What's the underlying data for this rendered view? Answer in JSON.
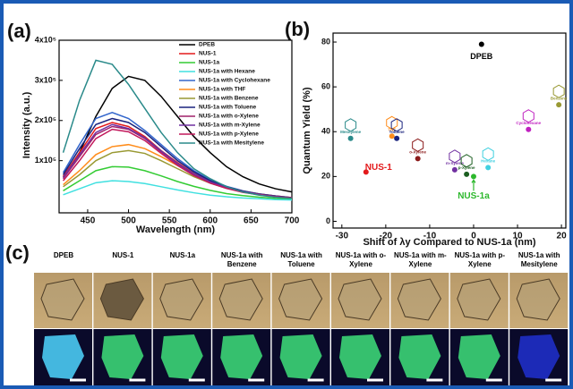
{
  "chart_data": [
    {
      "type": "line",
      "panel": "(a)",
      "xlabel": "Wavelength (nm)",
      "ylabel": "Intensity (a.u.)",
      "x": [
        420,
        440,
        460,
        480,
        500,
        520,
        540,
        560,
        580,
        600,
        620,
        640,
        660,
        680,
        700
      ],
      "xlim": [
        415,
        700
      ],
      "xticks": [
        450,
        500,
        550,
        600,
        650,
        700
      ],
      "ylim": [
        -30000,
        400000
      ],
      "yticks": [
        {
          "value": 100000,
          "label": "1x10⁵"
        },
        {
          "value": 200000,
          "label": "2x10⁵"
        },
        {
          "value": 300000,
          "label": "3x10⁵"
        },
        {
          "value": 400000,
          "label": "4x10⁵"
        }
      ],
      "series": [
        {
          "name": "DPEB",
          "color": "#000000",
          "values": [
            60000,
            120000,
            210000,
            280000,
            310000,
            300000,
            260000,
            210000,
            160000,
            120000,
            85000,
            60000,
            42000,
            30000,
            22000
          ]
        },
        {
          "name": "NUS-1",
          "color": "#e31a1c",
          "values": [
            60000,
            120000,
            180000,
            195000,
            185000,
            160000,
            125000,
            95000,
            68000,
            48000,
            33000,
            23000,
            16000,
            11000,
            8000
          ]
        },
        {
          "name": "NUS-1a",
          "color": "#33cc33",
          "values": [
            25000,
            50000,
            75000,
            85000,
            84000,
            75000,
            62000,
            48000,
            36000,
            26000,
            18000,
            13000,
            9000,
            6000,
            4000
          ]
        },
        {
          "name": "NUS-1a with Hexane",
          "color": "#40e0e0",
          "values": [
            15000,
            30000,
            45000,
            50000,
            48000,
            43000,
            35000,
            27000,
            20000,
            14000,
            10000,
            7000,
            5000,
            3000,
            2000
          ]
        },
        {
          "name": "NUS-1a with Cyclohexane",
          "color": "#3366cc",
          "values": [
            70000,
            140000,
            205000,
            220000,
            205000,
            175000,
            140000,
            105000,
            75000,
            52000,
            36000,
            25000,
            17000,
            12000,
            8000
          ]
        },
        {
          "name": "NUS-1a with THF",
          "color": "#ff8c1a",
          "values": [
            40000,
            75000,
            115000,
            135000,
            140000,
            130000,
            110000,
            88000,
            66000,
            48000,
            34000,
            24000,
            17000,
            12000,
            8000
          ]
        },
        {
          "name": "NUS-1a with Benzene",
          "color": "#999933",
          "values": [
            35000,
            65000,
            100000,
            120000,
            125000,
            118000,
            100000,
            80000,
            60000,
            44000,
            31000,
            22000,
            15000,
            10000,
            7000
          ]
        },
        {
          "name": "NUS-1a with Toluene",
          "color": "#1a237e",
          "values": [
            65000,
            130000,
            190000,
            205000,
            195000,
            170000,
            135000,
            100000,
            72000,
            50000,
            35000,
            24000,
            17000,
            12000,
            8000
          ]
        },
        {
          "name": "NUS-1a with o-Xylene",
          "color": "#a0206a",
          "values": [
            55000,
            110000,
            165000,
            185000,
            178000,
            155000,
            122000,
            92000,
            66000,
            46000,
            32000,
            22000,
            15000,
            10000,
            7000
          ]
        },
        {
          "name": "NUS-1a with m-Xylene",
          "color": "#7030a0",
          "values": [
            58000,
            115000,
            170000,
            190000,
            180000,
            157000,
            124000,
            93000,
            67000,
            47000,
            33000,
            23000,
            16000,
            11000,
            7000
          ]
        },
        {
          "name": "NUS-1a with p-Xylene",
          "color": "#c2185b",
          "values": [
            50000,
            100000,
            155000,
            178000,
            172000,
            150000,
            118000,
            88000,
            63000,
            44000,
            31000,
            21000,
            15000,
            10000,
            7000
          ]
        },
        {
          "name": "NUS-1a with Mesitylene",
          "color": "#2a8a8a",
          "values": [
            120000,
            250000,
            350000,
            340000,
            290000,
            230000,
            170000,
            120000,
            80000,
            55000,
            35000,
            22000,
            14000,
            9000,
            6000
          ]
        }
      ]
    },
    {
      "type": "scatter",
      "panel": "(b)",
      "xlabel": "Shift of λy Compared to NUS-1a (nm)",
      "ylabel": "Quantum Yield (%)",
      "xlim": [
        -32,
        21
      ],
      "xticks": [
        -30,
        -20,
        -10,
        0,
        10,
        20
      ],
      "ylim": [
        -3,
        84
      ],
      "yticks": [
        0,
        20,
        40,
        60,
        80
      ],
      "labels": [
        "DPEB",
        "NUS-1",
        "NUS-1a",
        "Mesitylene",
        "THF",
        "Toluene",
        "o-Xylene",
        "m-Xylene",
        "p-Xylene",
        "Hexane",
        "Cyclohexane",
        "Benzene"
      ],
      "x": [
        1.8,
        -24.5,
        0,
        -28,
        -18.6,
        -17.5,
        -12.7,
        -4.3,
        -1.6,
        3.3,
        12.5,
        19.4
      ],
      "values": [
        79,
        22,
        20,
        37,
        38,
        37,
        28,
        23,
        21,
        24,
        41,
        52
      ],
      "colors": [
        "#000000",
        "#e31a1c",
        "#2db82d",
        "#2a8a8a",
        "#ff8c1a",
        "#1a237e",
        "#8b1a1a",
        "#7030a0",
        "#1b5e20",
        "#40d0e0",
        "#c020c0",
        "#999933"
      ]
    }
  ],
  "photos": {
    "panel": "(c)",
    "labels": [
      "DPEB",
      "NUS-1",
      "NUS-1a",
      "NUS-1a with Benzene",
      "NUS-1a with Toluene",
      "NUS-1a with o-Xylene",
      "NUS-1a with m-Xylene",
      "NUS-1a with p-Xylene",
      "NUS-1a with Mesitylene"
    ]
  }
}
